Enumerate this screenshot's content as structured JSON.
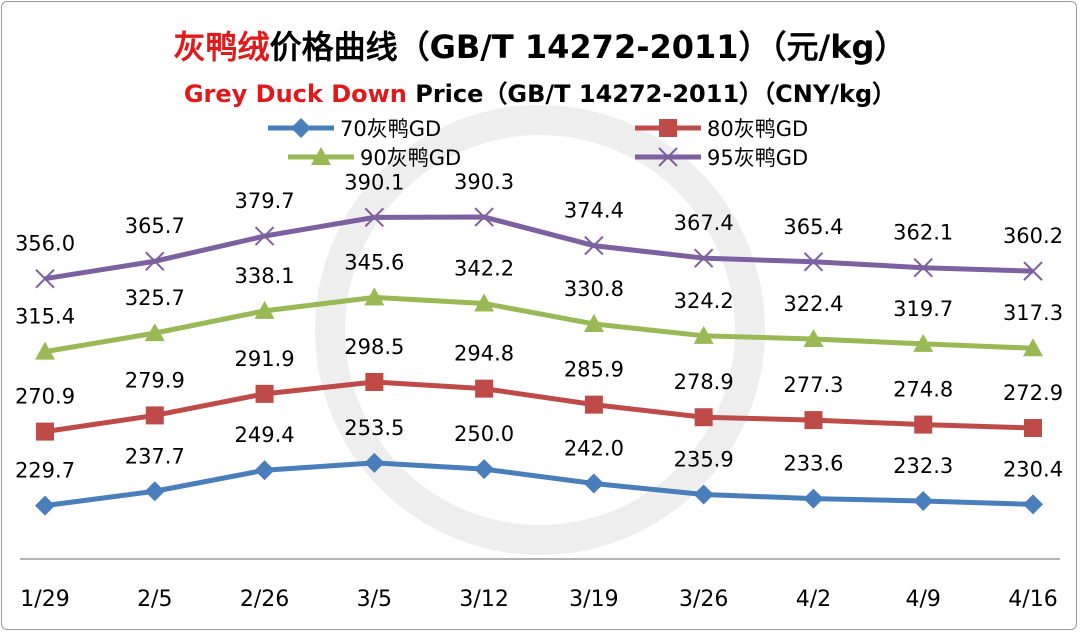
{
  "title": {
    "cn_red": "灰鸭绒",
    "cn_rest": "价格曲线（GB/T 14272-2011）（元/kg）",
    "en_red": "Grey Duck Down",
    "en_rest": " Price（GB/T 14272-2011）（CNY/kg）"
  },
  "chart_data": {
    "type": "line",
    "title": "灰鸭绒价格曲线（GB/T 14272-2011）（元/kg） Grey Duck Down Price（GB/T 14272-2011）（CNY/kg）",
    "categories": [
      "1/29",
      "2/5",
      "2/26",
      "3/5",
      "3/12",
      "3/19",
      "3/26",
      "4/2",
      "4/9",
      "4/16"
    ],
    "ylim": [
      200,
      400
    ],
    "grid": false,
    "legend": "top",
    "series": [
      {
        "name": "70灰鸭GD",
        "color": "#4a7ebb",
        "marker": "diamond",
        "values": [
          229.7,
          237.7,
          249.4,
          253.5,
          250.0,
          242.0,
          235.9,
          233.6,
          232.3,
          230.4
        ]
      },
      {
        "name": "80灰鸭GD",
        "color": "#be4b48",
        "marker": "square",
        "values": [
          270.9,
          279.9,
          291.9,
          298.5,
          294.8,
          285.9,
          278.9,
          277.3,
          274.8,
          272.9
        ]
      },
      {
        "name": "90灰鸭GD",
        "color": "#98b954",
        "marker": "triangle",
        "values": [
          315.4,
          325.7,
          338.1,
          345.6,
          342.2,
          330.8,
          324.2,
          322.4,
          319.7,
          317.3
        ]
      },
      {
        "name": "95灰鸭GD",
        "color": "#7d60a0",
        "marker": "x",
        "values": [
          356.0,
          365.7,
          379.7,
          390.1,
          390.3,
          374.4,
          367.4,
          365.4,
          362.1,
          360.2
        ]
      }
    ]
  }
}
